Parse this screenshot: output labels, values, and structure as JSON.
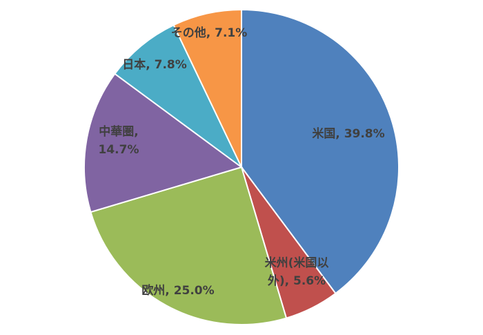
{
  "chart_data": {
    "type": "pie",
    "start_angle_deg": 0,
    "direction": "clockwise",
    "slices": [
      {
        "name": "米国",
        "value": 39.8,
        "label_lines": [
          "米国, 39.8%"
        ],
        "color": "#4F81BD"
      },
      {
        "name": "米州(米国以外)",
        "value": 5.6,
        "label_lines": [
          "米州(米国以",
          "外), 5.6%"
        ],
        "color": "#C0504D"
      },
      {
        "name": "欧州",
        "value": 25.0,
        "label_lines": [
          "欧州, 25.0%"
        ],
        "color": "#9BBB59"
      },
      {
        "name": "中華圏",
        "value": 14.7,
        "label_lines": [
          "中華圏,",
          "14.7%"
        ],
        "color": "#8064A2"
      },
      {
        "name": "日本",
        "value": 7.8,
        "label_lines": [
          "日本, 7.8%"
        ],
        "color": "#4BACC6"
      },
      {
        "name": "その他",
        "value": 7.1,
        "label_lines": [
          "その他, 7.1%"
        ],
        "color": "#F79646"
      }
    ]
  }
}
